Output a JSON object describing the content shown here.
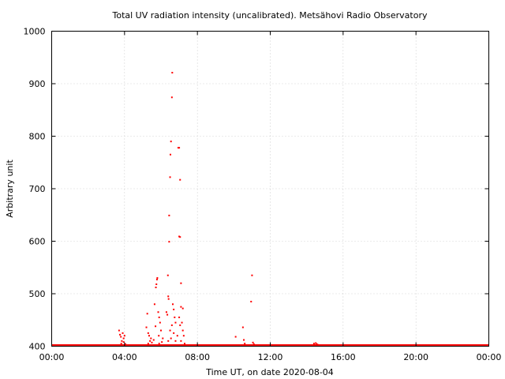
{
  "chart_data": {
    "type": "scatter",
    "title": "Total UV radiation intensity (uncalibrated). Metsähovi Radio Observatory",
    "xlabel": "Time UT, on date 2020-08-04",
    "ylabel": "Arbitrary unit",
    "x_unit": "hours UT",
    "xlim": [
      0,
      24
    ],
    "ylim": [
      400,
      1000
    ],
    "x_ticks": [
      {
        "value": 0,
        "label": "00:00"
      },
      {
        "value": 4,
        "label": "04:00"
      },
      {
        "value": 8,
        "label": "08:00"
      },
      {
        "value": 12,
        "label": "12:00"
      },
      {
        "value": 16,
        "label": "16:00"
      },
      {
        "value": 20,
        "label": "20:00"
      },
      {
        "value": 24,
        "label": "00:00"
      }
    ],
    "y_ticks": [
      {
        "value": 400,
        "label": "400"
      },
      {
        "value": 500,
        "label": "500"
      },
      {
        "value": 600,
        "label": "600"
      },
      {
        "value": 700,
        "label": "700"
      },
      {
        "value": 800,
        "label": "800"
      },
      {
        "value": 900,
        "label": "900"
      },
      {
        "value": 1000,
        "label": "1000"
      }
    ],
    "grid": true,
    "marker_color": "#ff0000",
    "baseline": {
      "y": 400,
      "x_from": 0,
      "x_to": 24
    },
    "points": [
      [
        3.7,
        430
      ],
      [
        3.75,
        422
      ],
      [
        3.8,
        418
      ],
      [
        3.85,
        410
      ],
      [
        3.9,
        425
      ],
      [
        3.95,
        415
      ],
      [
        4.0,
        420
      ],
      [
        3.82,
        405
      ],
      [
        3.95,
        408
      ],
      [
        4.05,
        404
      ],
      [
        5.25,
        462
      ],
      [
        5.2,
        436
      ],
      [
        5.3,
        425
      ],
      [
        5.35,
        420
      ],
      [
        5.4,
        410
      ],
      [
        5.45,
        415
      ],
      [
        5.5,
        407
      ],
      [
        5.3,
        405
      ],
      [
        5.65,
        480
      ],
      [
        5.72,
        512
      ],
      [
        5.75,
        518
      ],
      [
        5.78,
        527
      ],
      [
        5.8,
        530
      ],
      [
        5.85,
        465
      ],
      [
        5.9,
        455
      ],
      [
        5.95,
        445
      ],
      [
        6.0,
        430
      ],
      [
        5.7,
        438
      ],
      [
        5.88,
        420
      ],
      [
        5.6,
        412
      ],
      [
        6.05,
        408
      ],
      [
        6.1,
        415
      ],
      [
        5.9,
        405
      ],
      [
        6.3,
        465
      ],
      [
        6.35,
        460
      ],
      [
        6.38,
        535
      ],
      [
        6.4,
        495
      ],
      [
        6.42,
        490
      ],
      [
        6.45,
        599
      ],
      [
        6.45,
        649
      ],
      [
        6.5,
        722
      ],
      [
        6.52,
        765
      ],
      [
        6.55,
        790
      ],
      [
        6.6,
        874
      ],
      [
        6.62,
        921
      ],
      [
        6.65,
        480
      ],
      [
        6.7,
        470
      ],
      [
        6.75,
        455
      ],
      [
        6.8,
        445
      ],
      [
        6.6,
        440
      ],
      [
        6.5,
        430
      ],
      [
        6.7,
        425
      ],
      [
        6.8,
        410
      ],
      [
        6.55,
        415
      ],
      [
        6.9,
        420
      ],
      [
        6.4,
        410
      ],
      [
        6.95,
        778
      ],
      [
        7.0,
        778
      ],
      [
        7.05,
        717
      ],
      [
        7.0,
        609
      ],
      [
        7.05,
        608
      ],
      [
        7.1,
        520
      ],
      [
        7.1,
        475
      ],
      [
        7.2,
        472
      ],
      [
        7.0,
        455
      ],
      [
        7.15,
        445
      ],
      [
        7.2,
        430
      ],
      [
        7.25,
        420
      ],
      [
        7.1,
        410
      ],
      [
        7.3,
        405
      ],
      [
        7.05,
        440
      ],
      [
        10.1,
        418
      ],
      [
        10.5,
        436
      ],
      [
        10.55,
        412
      ],
      [
        10.6,
        405
      ],
      [
        11.0,
        535
      ],
      [
        10.95,
        485
      ],
      [
        11.05,
        407
      ],
      [
        11.1,
        404
      ],
      [
        14.4,
        405
      ],
      [
        14.5,
        406
      ],
      [
        14.55,
        404
      ],
      [
        14.6,
        403
      ]
    ]
  }
}
